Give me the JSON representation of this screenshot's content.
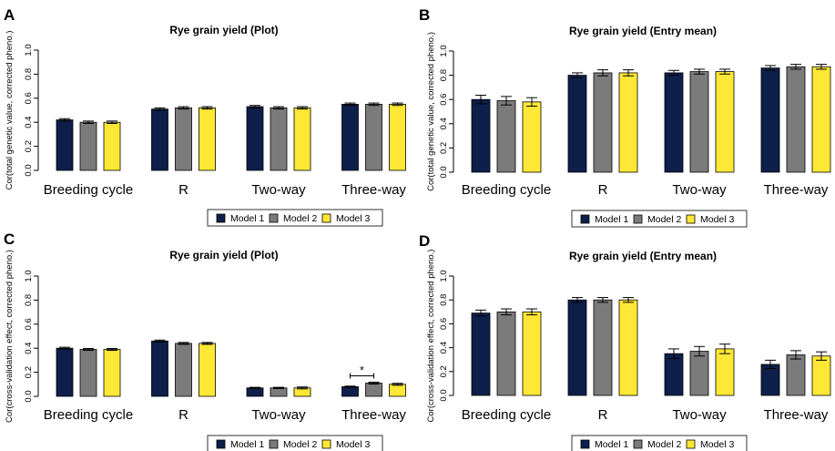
{
  "legend_labels": [
    "Model 1",
    "Model 2",
    "Model 3"
  ],
  "colors": {
    "Model 1": "#0d1f4a",
    "Model 2": "#7b7b7b",
    "Model 3": "#ffe835"
  },
  "chart_data": [
    {
      "panel": "A",
      "type": "bar",
      "title": "Rye grain yield (Plot)",
      "ylabel": "Cor(total genetic value, corrected pheno.)",
      "ylim": [
        0,
        1
      ],
      "yticks": [
        "0.0",
        "0.2",
        "0.4",
        "0.6",
        "0.8",
        "1.0"
      ],
      "categories": [
        "Breeding cycle",
        "R",
        "Two-way",
        "Three-way"
      ],
      "series": [
        {
          "name": "Model 1",
          "values": [
            0.42,
            0.51,
            0.53,
            0.55
          ],
          "err": [
            0.01,
            0.01,
            0.01,
            0.01
          ]
        },
        {
          "name": "Model 2",
          "values": [
            0.4,
            0.52,
            0.52,
            0.55
          ],
          "err": [
            0.01,
            0.01,
            0.01,
            0.01
          ]
        },
        {
          "name": "Model 3",
          "values": [
            0.4,
            0.52,
            0.52,
            0.55
          ],
          "err": [
            0.01,
            0.01,
            0.01,
            0.01
          ]
        }
      ],
      "legend": "bottom",
      "grid": false
    },
    {
      "panel": "B",
      "type": "bar",
      "title": "Rye grain yield (Entry mean)",
      "ylabel": "Cor(total genetic value, corrected pheno.)",
      "ylim": [
        0,
        1
      ],
      "yticks": [
        "0.0",
        "0.2",
        "0.4",
        "0.6",
        "0.8",
        "1.0"
      ],
      "categories": [
        "Breeding cycle",
        "R",
        "Two-way",
        "Three-way"
      ],
      "series": [
        {
          "name": "Model 1",
          "values": [
            0.6,
            0.8,
            0.82,
            0.86
          ],
          "err": [
            0.035,
            0.02,
            0.02,
            0.02
          ]
        },
        {
          "name": "Model 2",
          "values": [
            0.59,
            0.82,
            0.83,
            0.87
          ],
          "err": [
            0.035,
            0.025,
            0.02,
            0.02
          ]
        },
        {
          "name": "Model 3",
          "values": [
            0.58,
            0.82,
            0.83,
            0.87
          ],
          "err": [
            0.035,
            0.025,
            0.02,
            0.02
          ]
        }
      ],
      "legend": "bottom",
      "grid": false
    },
    {
      "panel": "C",
      "type": "bar",
      "title": "Rye grain yield (Plot)",
      "ylabel": "Cor(cross-validation effect, corrected pheno.)",
      "ylim": [
        0,
        1
      ],
      "yticks": [
        "0.0",
        "0.2",
        "0.4",
        "0.6",
        "0.8",
        "1.0"
      ],
      "categories": [
        "Breeding cycle",
        "R",
        "Two-way",
        "Three-way"
      ],
      "series": [
        {
          "name": "Model 1",
          "values": [
            0.4,
            0.46,
            0.07,
            0.08
          ],
          "err": [
            0.008,
            0.008,
            0.005,
            0.005
          ]
        },
        {
          "name": "Model 2",
          "values": [
            0.39,
            0.44,
            0.07,
            0.11
          ],
          "err": [
            0.008,
            0.008,
            0.005,
            0.008
          ]
        },
        {
          "name": "Model 3",
          "values": [
            0.39,
            0.44,
            0.07,
            0.1
          ],
          "err": [
            0.008,
            0.008,
            0.008,
            0.008
          ]
        }
      ],
      "annotations": [
        {
          "text": "*",
          "category": "Three-way",
          "between": [
            "Model 1",
            "Model 2"
          ],
          "y": 0.17
        }
      ],
      "legend": "bottom",
      "grid": false
    },
    {
      "panel": "D",
      "type": "bar",
      "title": "Rye grain yield (Entry mean)",
      "ylabel": "Cor(cross-validation effect, corrected pheno.)",
      "ylim": [
        0,
        1
      ],
      "yticks": [
        "0.0",
        "0.2",
        "0.4",
        "0.6",
        "0.8",
        "1.0"
      ],
      "categories": [
        "Breeding cycle",
        "R",
        "Two-way",
        "Three-way"
      ],
      "series": [
        {
          "name": "Model 1",
          "values": [
            0.69,
            0.8,
            0.35,
            0.26
          ],
          "err": [
            0.025,
            0.02,
            0.04,
            0.035
          ]
        },
        {
          "name": "Model 2",
          "values": [
            0.7,
            0.8,
            0.37,
            0.34
          ],
          "err": [
            0.025,
            0.02,
            0.04,
            0.035
          ]
        },
        {
          "name": "Model 3",
          "values": [
            0.7,
            0.8,
            0.39,
            0.33
          ],
          "err": [
            0.025,
            0.02,
            0.04,
            0.035
          ]
        }
      ],
      "legend": "bottom",
      "grid": false
    }
  ]
}
